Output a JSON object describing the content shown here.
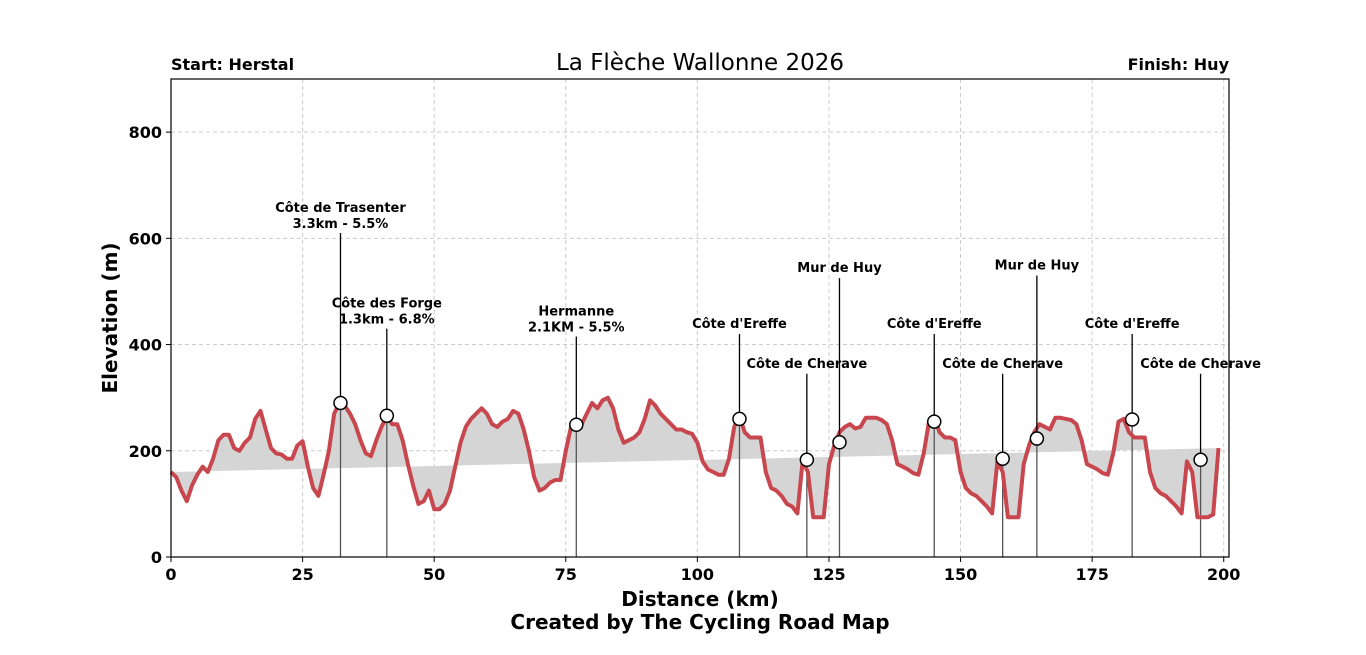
{
  "header": {
    "title": "La Flèche Wallonne 2026",
    "start_label": "Start: Herstal",
    "finish_label": "Finish: Huy"
  },
  "footer": {
    "credit": "Created by The Cycling Road Map"
  },
  "colors": {
    "line": "#c8474e",
    "fill": "#d5d5d5",
    "grid": "#cccccc",
    "marker_line": "#555555"
  },
  "chart_data": {
    "type": "area",
    "title": "La Flèche Wallonne 2026",
    "xlabel": "Distance (km)",
    "ylabel": "Elevation (m)",
    "xlim": [
      0,
      201
    ],
    "ylim": [
      0,
      900
    ],
    "xticks": [
      0,
      25,
      50,
      75,
      100,
      125,
      150,
      175,
      200
    ],
    "yticks": [
      0,
      200,
      400,
      600,
      800
    ],
    "grid": true,
    "annotations_note": "Climb markers with labels",
    "x": [
      0,
      1,
      2,
      3,
      4,
      5,
      6,
      7,
      8,
      9,
      10,
      11,
      12,
      13,
      14,
      15,
      16,
      17,
      18,
      19,
      20,
      21,
      22,
      23,
      24,
      25,
      26,
      27,
      28,
      29,
      30,
      31,
      32,
      33,
      34,
      35,
      36,
      37,
      38,
      39,
      40,
      41,
      42,
      43,
      44,
      45,
      46,
      47,
      48,
      49,
      50,
      51,
      52,
      53,
      54,
      55,
      56,
      57,
      58,
      59,
      60,
      61,
      62,
      63,
      64,
      65,
      66,
      67,
      68,
      69,
      70,
      71,
      72,
      73,
      74,
      75,
      76,
      77,
      78,
      79,
      80,
      81,
      82,
      83,
      84,
      85,
      86,
      87,
      88,
      89,
      90,
      91,
      92,
      93,
      94,
      95,
      96,
      97,
      98,
      99,
      100,
      101,
      102,
      103,
      104,
      105,
      106,
      107,
      108,
      109,
      110,
      111,
      112,
      113,
      114,
      115,
      116,
      117,
      118,
      119,
      120,
      121,
      122,
      123,
      124,
      125,
      126,
      127,
      128,
      129,
      130,
      131,
      132,
      133,
      134,
      135,
      136,
      137,
      138,
      139,
      140,
      141,
      142,
      143,
      144,
      145,
      146,
      147,
      148,
      149,
      150,
      151,
      152,
      153,
      154,
      155,
      156,
      157,
      158,
      159,
      160,
      161,
      162,
      163,
      164,
      165,
      166,
      167,
      168,
      169,
      170,
      171,
      172,
      173,
      174,
      175,
      176,
      177,
      178,
      179,
      180,
      181,
      182,
      183,
      184,
      185,
      186,
      187,
      188,
      189,
      190,
      191,
      192,
      193,
      194,
      195,
      196,
      197,
      198,
      199,
      200,
      201
    ],
    "elevation": [
      160,
      150,
      125,
      105,
      135,
      155,
      170,
      160,
      185,
      220,
      230,
      230,
      205,
      200,
      215,
      225,
      260,
      275,
      240,
      205,
      195,
      193,
      185,
      185,
      210,
      218,
      170,
      130,
      115,
      155,
      200,
      270,
      290,
      285,
      270,
      250,
      220,
      195,
      190,
      220,
      245,
      265,
      250,
      250,
      220,
      175,
      135,
      100,
      105,
      125,
      90,
      90,
      100,
      125,
      170,
      215,
      245,
      260,
      270,
      280,
      270,
      250,
      245,
      255,
      260,
      275,
      270,
      240,
      200,
      150,
      125,
      130,
      140,
      145,
      145,
      200,
      245,
      250,
      250,
      270,
      290,
      280,
      295,
      300,
      280,
      240,
      215,
      220,
      225,
      235,
      260,
      295,
      285,
      270,
      260,
      250,
      240,
      240,
      235,
      232,
      215,
      180,
      165,
      160,
      155,
      155,
      185,
      245,
      265,
      235,
      225,
      225,
      225,
      160,
      130,
      125,
      115,
      100,
      95,
      82,
      180,
      160,
      75,
      75,
      75,
      175,
      210,
      235,
      245,
      250,
      242,
      245,
      262,
      262,
      262,
      258,
      250,
      220,
      175,
      170,
      165,
      158,
      155,
      195,
      255,
      265,
      235,
      225,
      225,
      220,
      160,
      130,
      120,
      115,
      105,
      95,
      82,
      180,
      160,
      75,
      75,
      75,
      175,
      210,
      235,
      250,
      245,
      240,
      262,
      262,
      260,
      258,
      250,
      220,
      175,
      170,
      165,
      158,
      155,
      195,
      255,
      260,
      235,
      225,
      225,
      225,
      160,
      130,
      120,
      115,
      105,
      95,
      82,
      180,
      160,
      75,
      75,
      75,
      80,
      205
    ],
    "climbs": [
      {
        "name": "Côte de Trasenter",
        "detail": "3.3km - 5.5%",
        "km": 32.2,
        "elev": 290,
        "label_elev": 610
      },
      {
        "name": "Côte des Forge",
        "detail": "1.3km - 6.8%",
        "km": 41.0,
        "elev": 266,
        "label_elev": 430
      },
      {
        "name": "Hermanne",
        "detail": "2.1KM - 5.5%",
        "km": 77.0,
        "elev": 249,
        "label_elev": 415
      },
      {
        "name": "Côte d'Ereffe",
        "detail": "",
        "km": 108.0,
        "elev": 260,
        "label_elev": 420
      },
      {
        "name": "Côte de Cherave",
        "detail": "",
        "km": 120.8,
        "elev": 183,
        "label_elev": 345
      },
      {
        "name": "Mur de Huy",
        "detail": "",
        "km": 127.0,
        "elev": 216,
        "label_elev": 525
      },
      {
        "name": "Côte d'Ereffe",
        "detail": "",
        "km": 145.0,
        "elev": 255,
        "label_elev": 420
      },
      {
        "name": "Côte de Cherave",
        "detail": "",
        "km": 158.0,
        "elev": 185,
        "label_elev": 345
      },
      {
        "name": "Mur de Huy",
        "detail": "",
        "km": 164.5,
        "elev": 223,
        "label_elev": 530
      },
      {
        "name": "Côte d'Ereffe",
        "detail": "",
        "km": 182.6,
        "elev": 259,
        "label_elev": 420
      },
      {
        "name": "Côte de Cherave",
        "detail": "",
        "km": 195.6,
        "elev": 183,
        "label_elev": 345
      }
    ]
  }
}
